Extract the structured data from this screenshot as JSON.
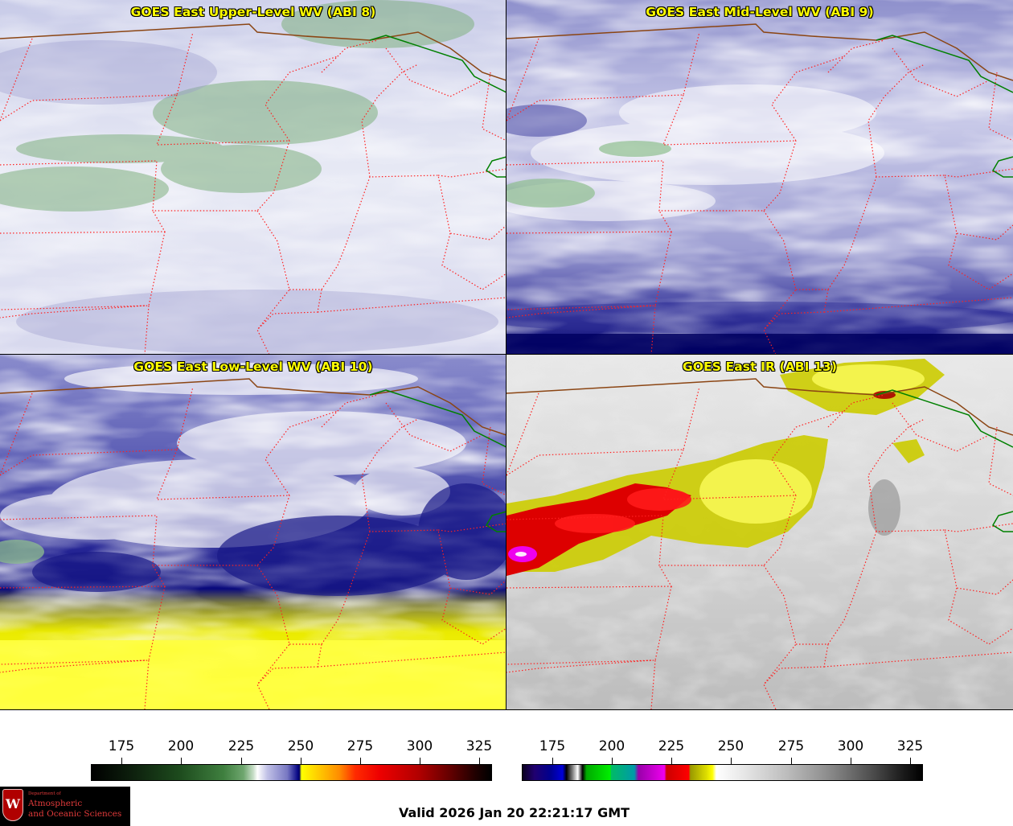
{
  "panels": [
    {
      "title": "GOES East Upper-Level WV (ABI 8)"
    },
    {
      "title": "GOES East Mid-Level WV (ABI 9)"
    },
    {
      "title": "GOES East Low-Level WV (ABI 10)"
    },
    {
      "title": "GOES East IR (ABI 13)"
    }
  ],
  "colorbar_wv": {
    "ticks": [
      "175",
      "200",
      "225",
      "250",
      "275",
      "300",
      "325"
    ]
  },
  "colorbar_ir": {
    "ticks": [
      "175",
      "200",
      "225",
      "250",
      "275",
      "300",
      "325"
    ]
  },
  "logo": {
    "crest_letter": "W",
    "small_text": "Department of",
    "line1": "Atmospheric",
    "line2": "and Oceanic Sciences"
  },
  "valid_time": "Valid 2026 Jan 20 22:21:17 GMT",
  "colors": {
    "title_text": "#ffff00",
    "state_borders": "#ff2020",
    "canada_border": "#8b4513",
    "lake_border": "#008000"
  }
}
